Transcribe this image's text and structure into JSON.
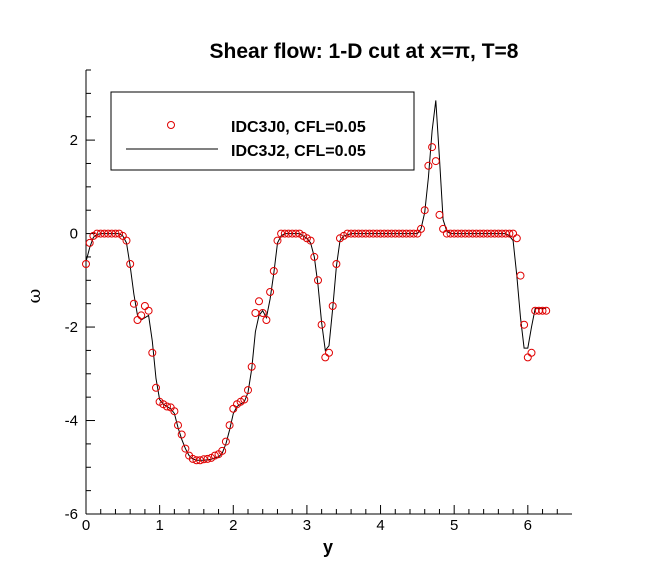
{
  "chart_data": {
    "type": "line",
    "title": "Shear flow: 1-D cut at x=π, T=8",
    "xlabel": "y",
    "ylabel": "ω",
    "xlim": [
      0,
      6.6
    ],
    "ylim": [
      -6,
      3.5
    ],
    "xticks": [
      0,
      1,
      2,
      3,
      4,
      5,
      6
    ],
    "xtick_labels": [
      "0",
      "1",
      "2",
      "3",
      "4",
      "5",
      "6"
    ],
    "yticks": [
      -6,
      -4,
      -2,
      0,
      2
    ],
    "ytick_labels": [
      "-6",
      "-4",
      "-2",
      "0",
      "2"
    ],
    "grid": false,
    "legend_position": "top-left",
    "series": [
      {
        "name": "IDC3J0, CFL=0.05",
        "style": "markers",
        "marker": "open-circle",
        "color": "#e00000",
        "x": [
          0.0,
          0.05,
          0.1,
          0.15,
          0.2,
          0.25,
          0.3,
          0.35,
          0.4,
          0.45,
          0.5,
          0.55,
          0.6,
          0.65,
          0.7,
          0.75,
          0.8,
          0.85,
          0.9,
          0.95,
          1.0,
          1.05,
          1.1,
          1.15,
          1.2,
          1.25,
          1.3,
          1.35,
          1.4,
          1.45,
          1.5,
          1.55,
          1.6,
          1.65,
          1.7,
          1.75,
          1.8,
          1.85,
          1.9,
          1.95,
          2.0,
          2.05,
          2.1,
          2.15,
          2.2,
          2.25,
          2.3,
          2.35,
          2.4,
          2.45,
          2.5,
          2.55,
          2.6,
          2.65,
          2.7,
          2.75,
          2.8,
          2.85,
          2.9,
          2.95,
          3.0,
          3.05,
          3.1,
          3.15,
          3.2,
          3.25,
          3.3,
          3.35,
          3.4,
          3.45,
          3.5,
          3.55,
          3.6,
          3.65,
          3.7,
          3.75,
          3.8,
          3.85,
          3.9,
          3.95,
          4.0,
          4.05,
          4.1,
          4.15,
          4.2,
          4.25,
          4.3,
          4.35,
          4.4,
          4.45,
          4.5,
          4.55,
          4.6,
          4.65,
          4.7,
          4.75,
          4.8,
          4.85,
          4.9,
          4.95,
          5.0,
          5.05,
          5.1,
          5.15,
          5.2,
          5.25,
          5.3,
          5.35,
          5.4,
          5.45,
          5.5,
          5.55,
          5.6,
          5.65,
          5.7,
          5.75,
          5.8,
          5.85,
          5.9,
          5.95,
          6.0,
          6.05,
          6.1,
          6.15,
          6.2,
          6.25
        ],
        "y": [
          -0.65,
          -0.2,
          -0.05,
          0.0,
          0.0,
          0.0,
          0.0,
          0.0,
          0.0,
          0.0,
          -0.05,
          -0.15,
          -0.65,
          -1.5,
          -1.85,
          -1.75,
          -1.55,
          -1.65,
          -2.55,
          -3.3,
          -3.6,
          -3.65,
          -3.7,
          -3.72,
          -3.8,
          -4.1,
          -4.3,
          -4.6,
          -4.75,
          -4.82,
          -4.85,
          -4.85,
          -4.83,
          -4.82,
          -4.8,
          -4.75,
          -4.72,
          -4.65,
          -4.45,
          -4.1,
          -3.75,
          -3.65,
          -3.6,
          -3.55,
          -3.35,
          -2.85,
          -1.7,
          -1.45,
          -1.7,
          -1.85,
          -1.25,
          -0.8,
          -0.15,
          0.0,
          0.0,
          0.0,
          0.0,
          0.0,
          0.0,
          -0.05,
          -0.1,
          -0.15,
          -0.5,
          -1.0,
          -1.95,
          -2.65,
          -2.55,
          -1.55,
          -0.65,
          -0.1,
          -0.05,
          0.0,
          0.0,
          0.0,
          0.0,
          0.0,
          0.0,
          0.0,
          0.0,
          0.0,
          0.0,
          0.0,
          0.0,
          0.0,
          0.0,
          0.0,
          0.0,
          0.0,
          0.0,
          0.0,
          0.0,
          0.1,
          0.5,
          1.45,
          1.85,
          1.55,
          0.4,
          0.1,
          0.0,
          0.0,
          0.0,
          0.0,
          0.0,
          0.0,
          0.0,
          0.0,
          0.0,
          0.0,
          0.0,
          0.0,
          0.0,
          0.0,
          0.0,
          0.0,
          0.0,
          0.0,
          0.0,
          -0.1,
          -0.9,
          -1.95,
          -2.65,
          -2.55,
          -1.65,
          -1.65,
          -1.65,
          -1.65
        ]
      },
      {
        "name": "IDC3J2, CFL=0.05",
        "style": "line",
        "color": "#000000",
        "x": [
          0.0,
          0.05,
          0.1,
          0.15,
          0.2,
          0.3,
          0.4,
          0.45,
          0.5,
          0.55,
          0.6,
          0.65,
          0.7,
          0.75,
          0.8,
          0.85,
          0.9,
          0.95,
          1.0,
          1.05,
          1.1,
          1.15,
          1.2,
          1.25,
          1.3,
          1.35,
          1.4,
          1.45,
          1.5,
          1.6,
          1.7,
          1.75,
          1.8,
          1.85,
          1.9,
          1.95,
          2.0,
          2.05,
          2.1,
          2.15,
          2.2,
          2.25,
          2.3,
          2.35,
          2.4,
          2.45,
          2.5,
          2.55,
          2.6,
          2.65,
          2.7,
          2.8,
          2.9,
          2.95,
          3.0,
          3.05,
          3.1,
          3.15,
          3.2,
          3.25,
          3.3,
          3.35,
          3.4,
          3.45,
          3.5,
          3.6,
          3.8,
          4.0,
          4.2,
          4.4,
          4.5,
          4.55,
          4.6,
          4.65,
          4.7,
          4.75,
          4.8,
          4.85,
          4.9,
          4.95,
          5.0,
          5.2,
          5.4,
          5.6,
          5.7,
          5.75,
          5.8,
          5.85,
          5.9,
          5.95,
          6.0,
          6.05,
          6.1,
          6.15,
          6.2,
          6.25
        ],
        "y": [
          -0.6,
          -0.3,
          -0.08,
          -0.02,
          0.0,
          0.0,
          0.0,
          0.0,
          -0.05,
          -0.2,
          -0.7,
          -1.3,
          -1.75,
          -1.85,
          -1.8,
          -1.75,
          -2.3,
          -3.1,
          -3.55,
          -3.65,
          -3.7,
          -3.75,
          -3.85,
          -4.15,
          -4.4,
          -4.6,
          -4.75,
          -4.82,
          -4.85,
          -4.85,
          -4.83,
          -4.8,
          -4.78,
          -4.7,
          -4.5,
          -4.2,
          -3.85,
          -3.7,
          -3.65,
          -3.6,
          -3.4,
          -2.9,
          -2.1,
          -1.75,
          -1.65,
          -1.8,
          -1.4,
          -0.85,
          -0.2,
          -0.05,
          0.0,
          0.0,
          0.0,
          -0.05,
          -0.1,
          -0.2,
          -0.5,
          -1.1,
          -1.9,
          -2.5,
          -2.4,
          -1.6,
          -0.7,
          -0.15,
          -0.05,
          0.0,
          0.0,
          0.0,
          0.0,
          0.0,
          0.0,
          0.1,
          0.45,
          1.2,
          2.2,
          2.85,
          1.6,
          0.3,
          0.05,
          0.0,
          0.0,
          0.0,
          0.0,
          0.0,
          0.0,
          -0.05,
          -0.15,
          -0.9,
          -1.8,
          -2.45,
          -2.45,
          -2.0,
          -1.6,
          -1.6,
          -1.6,
          -1.6
        ]
      }
    ]
  }
}
